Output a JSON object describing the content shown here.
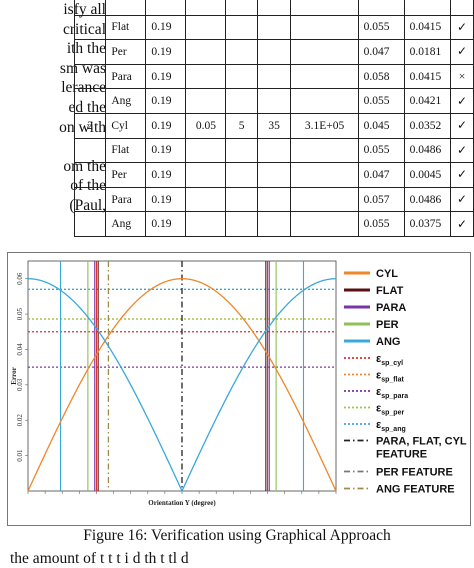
{
  "left_text": [
    "isfy all",
    "critical",
    "ith the",
    "sm was",
    "lerance",
    "ed the",
    "on with",
    "",
    "om the",
    "of the",
    "(Paul,"
  ],
  "table": {
    "rows": [
      {
        "id": "",
        "shape": "",
        "c1": "",
        "c2": "",
        "c3": "",
        "c4": "",
        "c5": "",
        "c6": "",
        "c7": "",
        "mark": ""
      },
      {
        "id": "",
        "shape": "Flat",
        "c1": "0.19",
        "c2": "",
        "c3": "",
        "c4": "",
        "c5": "",
        "c6": "0.055",
        "c7": "0.0415",
        "mark": "✓"
      },
      {
        "id": "",
        "shape": "Per",
        "c1": "0.19",
        "c2": "",
        "c3": "",
        "c4": "",
        "c5": "",
        "c6": "0.047",
        "c7": "0.0181",
        "mark": "✓"
      },
      {
        "id": "",
        "shape": "Para",
        "c1": "0.19",
        "c2": "",
        "c3": "",
        "c4": "",
        "c5": "",
        "c6": "0.058",
        "c7": "0.0415",
        "mark": "×"
      },
      {
        "id": "",
        "shape": "Ang",
        "c1": "0.19",
        "c2": "",
        "c3": "",
        "c4": "",
        "c5": "",
        "c6": "0.055",
        "c7": "0.0421",
        "mark": "✓"
      },
      {
        "id": "2",
        "shape": "Cyl",
        "c1": "0.19",
        "c2": "0.05",
        "c3": "5",
        "c4": "35",
        "c5": "3.1E+05",
        "c6": "0.045",
        "c7": "0.0352",
        "mark": "✓"
      },
      {
        "id": "",
        "shape": "Flat",
        "c1": "0.19",
        "c2": "",
        "c3": "",
        "c4": "",
        "c5": "",
        "c6": "0.055",
        "c7": "0.0486",
        "mark": "✓"
      },
      {
        "id": "",
        "shape": "Per",
        "c1": "0.19",
        "c2": "",
        "c3": "",
        "c4": "",
        "c5": "",
        "c6": "0.047",
        "c7": "0.0045",
        "mark": "✓"
      },
      {
        "id": "",
        "shape": "Para",
        "c1": "0.19",
        "c2": "",
        "c3": "",
        "c4": "",
        "c5": "",
        "c6": "0.057",
        "c7": "0.0486",
        "mark": "✓"
      },
      {
        "id": "",
        "shape": "Ang",
        "c1": "0.19",
        "c2": "",
        "c3": "",
        "c4": "",
        "c5": "",
        "c6": "0.055",
        "c7": "0.0375",
        "mark": "✓"
      }
    ]
  },
  "figure": {
    "caption": "Figure 16: Verification using Graphical Approach",
    "bottom_text": "the amount of      t t   t                     i  d    th t     tl   d"
  },
  "chart_data": {
    "type": "line",
    "xlabel": "Orientation Y (degree)",
    "ylabel": "Error",
    "xlim": [
      0,
      180
    ],
    "ylim": [
      0,
      0.065
    ],
    "yticks": [
      "0.01",
      "0.02",
      "0.03",
      "0.04",
      "0.05",
      "0.06"
    ],
    "series": [
      {
        "name": "CYL",
        "color": "#f0862a",
        "kind": "curve",
        "formula": "0.06*sin(x)"
      },
      {
        "name": "FLAT",
        "color": "#5a1010",
        "kind": "vline"
      },
      {
        "name": "PARA",
        "color": "#7a35a8",
        "kind": "vline"
      },
      {
        "name": "PER",
        "color": "#8fbf55",
        "kind": "vline"
      },
      {
        "name": "ANG",
        "color": "#3aa8dc",
        "kind": "curve",
        "formula": "0.06*|cos(x)|"
      },
      {
        "name": "ε_sp_cyl",
        "color": "#d9322b",
        "kind": "hline",
        "value": 0.045
      },
      {
        "name": "ε_sp_flat",
        "color": "#f0862a",
        "kind": "hline",
        "value": 0.0486
      },
      {
        "name": "ε_sp_para",
        "color": "#7a35a8",
        "kind": "hline",
        "value": 0.035
      },
      {
        "name": "ε_sp_per",
        "color": "#9fc640",
        "kind": "hline",
        "value": 0.0486
      },
      {
        "name": "ε_sp_ang",
        "color": "#3aa8dc",
        "kind": "hline",
        "value": 0.057
      },
      {
        "name": "PARA, FLAT, CYL FEATURE",
        "color": "#222222",
        "kind": "feature",
        "value": 90
      },
      {
        "name": "PER FEATURE",
        "color": "#777777",
        "kind": "feature",
        "value": 0
      },
      {
        "name": "ANG FEATURE",
        "color": "#a08a4a",
        "kind": "feature",
        "value": 45
      }
    ],
    "vlines": [
      {
        "x": 19,
        "color": "#3aa8dc"
      },
      {
        "x": 35,
        "color": "#8fbf55"
      },
      {
        "x": 39,
        "color": "#7a35a8"
      },
      {
        "x": 40,
        "color": "#d9322b"
      },
      {
        "x": 41,
        "color": "#5a1010"
      },
      {
        "x": 47,
        "color": "#a08a4a",
        "dash": true
      },
      {
        "x": 90,
        "color": "#222222",
        "dash": true
      },
      {
        "x": 139,
        "color": "#5a1010"
      },
      {
        "x": 140,
        "color": "#d9322b"
      },
      {
        "x": 141,
        "color": "#7a35a8"
      },
      {
        "x": 145,
        "color": "#8fbf55"
      },
      {
        "x": 161,
        "color": "#3aa8dc"
      }
    ],
    "legend": [
      {
        "label": "CYL",
        "color": "#f0862a",
        "style": "solid"
      },
      {
        "label": "FLAT",
        "color": "#5a1010",
        "style": "solid"
      },
      {
        "label": "PARA",
        "color": "#7a35a8",
        "style": "solid"
      },
      {
        "label": "PER",
        "color": "#8fbf55",
        "style": "solid"
      },
      {
        "label": "ANG",
        "color": "#3aa8dc",
        "style": "solid"
      },
      {
        "label": "ε",
        "sub": "sp_cyl",
        "color": "#d9322b",
        "style": "dot"
      },
      {
        "label": "ε",
        "sub": "sp_flat",
        "color": "#f0862a",
        "style": "dot"
      },
      {
        "label": "ε",
        "sub": "sp_para",
        "color": "#7a35a8",
        "style": "dot"
      },
      {
        "label": "ε",
        "sub": "sp_per",
        "color": "#9fc640",
        "style": "dot"
      },
      {
        "label": "ε",
        "sub": "sp_ang",
        "color": "#3aa8dc",
        "style": "dot"
      },
      {
        "label": "PARA, FLAT, CYL",
        "label2": "FEATURE",
        "color": "#222222",
        "style": "dashdot"
      },
      {
        "label": "PER FEATURE",
        "color": "#777777",
        "style": "dashdot"
      },
      {
        "label": "ANG FEATURE",
        "color": "#a08a4a",
        "style": "dashdot"
      }
    ]
  }
}
